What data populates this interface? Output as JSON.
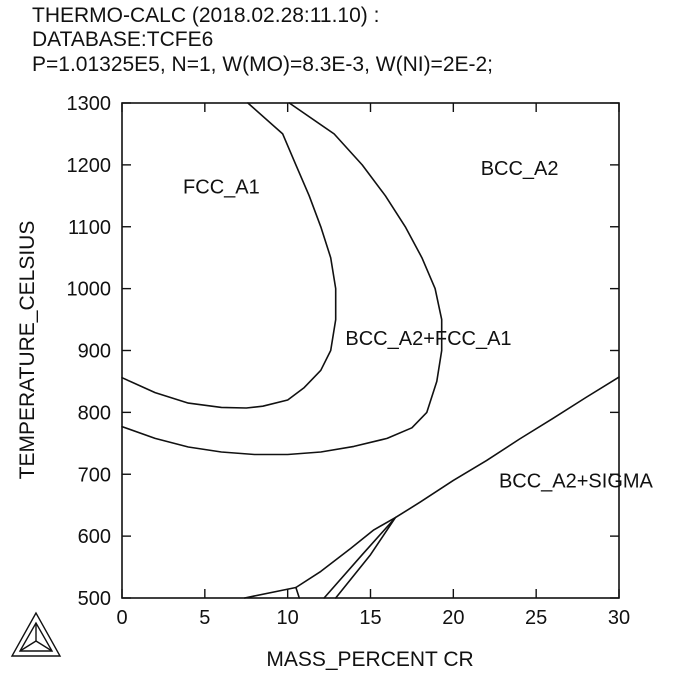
{
  "header": {
    "line1": "THERMO-CALC (2018.02.28:11.10) :",
    "line2": "DATABASE:TCFE6",
    "line3": "P=1.01325E5, N=1, W(MO)=8.3E-3, W(NI)=2E-2;"
  },
  "chart_data": {
    "type": "line",
    "title": "",
    "xlabel": "MASS_PERCENT CR",
    "ylabel": "TEMPERATURE_CELSIUS",
    "xlim": [
      0,
      30
    ],
    "ylim": [
      500,
      1300
    ],
    "x_ticks": [
      0,
      5,
      10,
      15,
      20,
      25,
      30
    ],
    "y_ticks": [
      500,
      600,
      700,
      800,
      900,
      1000,
      1100,
      1200,
      1300
    ],
    "grid": false,
    "legend": "none",
    "region_labels": [
      {
        "text": "FCC_A1",
        "x": 6.0,
        "y": 1165
      },
      {
        "text": "BCC_A2",
        "x": 24.0,
        "y": 1195
      },
      {
        "text": "BCC_A2+FCC_A1",
        "x": 18.5,
        "y": 920
      },
      {
        "text": "BCC_A2+SIGMA",
        "x": 27.4,
        "y": 690
      }
    ],
    "series": [
      {
        "points": [
          [
            0,
            856
          ],
          [
            2,
            832
          ],
          [
            4,
            815
          ],
          [
            6,
            808
          ],
          [
            7.5,
            807
          ],
          [
            8.5,
            810
          ],
          [
            10,
            820
          ],
          [
            11,
            840
          ],
          [
            12,
            868
          ],
          [
            12.6,
            900
          ],
          [
            12.9,
            950
          ],
          [
            12.9,
            1000
          ],
          [
            12.6,
            1050
          ],
          [
            12.0,
            1100
          ],
          [
            11.3,
            1150
          ],
          [
            10.5,
            1200
          ],
          [
            9.7,
            1250
          ],
          [
            7.6,
            1300
          ]
        ]
      },
      {
        "points": [
          [
            0,
            777
          ],
          [
            2,
            758
          ],
          [
            4,
            744
          ],
          [
            6,
            736
          ],
          [
            8,
            732
          ],
          [
            10,
            732
          ],
          [
            12,
            736
          ],
          [
            14,
            745
          ],
          [
            16,
            758
          ],
          [
            17.5,
            775
          ],
          [
            18.4,
            800
          ],
          [
            19.0,
            850
          ],
          [
            19.3,
            900
          ],
          [
            19.3,
            950
          ],
          [
            18.9,
            1000
          ],
          [
            18.1,
            1050
          ],
          [
            17.1,
            1100
          ],
          [
            15.9,
            1150
          ],
          [
            14.5,
            1200
          ],
          [
            12.8,
            1250
          ],
          [
            10.1,
            1300
          ]
        ]
      },
      {
        "points": [
          [
            7.4,
            500
          ],
          [
            10.5,
            517
          ],
          [
            12.0,
            543
          ],
          [
            13.8,
            580
          ],
          [
            15.2,
            610
          ],
          [
            16.5,
            630
          ],
          [
            18.0,
            655
          ],
          [
            20.0,
            690
          ],
          [
            22.0,
            722
          ],
          [
            24.0,
            757
          ],
          [
            26.0,
            790
          ],
          [
            28.0,
            824
          ],
          [
            30.0,
            857
          ]
        ]
      },
      {
        "points": [
          [
            10.5,
            517
          ],
          [
            10.7,
            500
          ]
        ]
      },
      {
        "points": [
          [
            12.2,
            500
          ],
          [
            14.5,
            570
          ],
          [
            16.5,
            630
          ]
        ]
      },
      {
        "points": [
          [
            12.9,
            500
          ],
          [
            15.0,
            570
          ],
          [
            16.5,
            630
          ]
        ]
      }
    ]
  }
}
